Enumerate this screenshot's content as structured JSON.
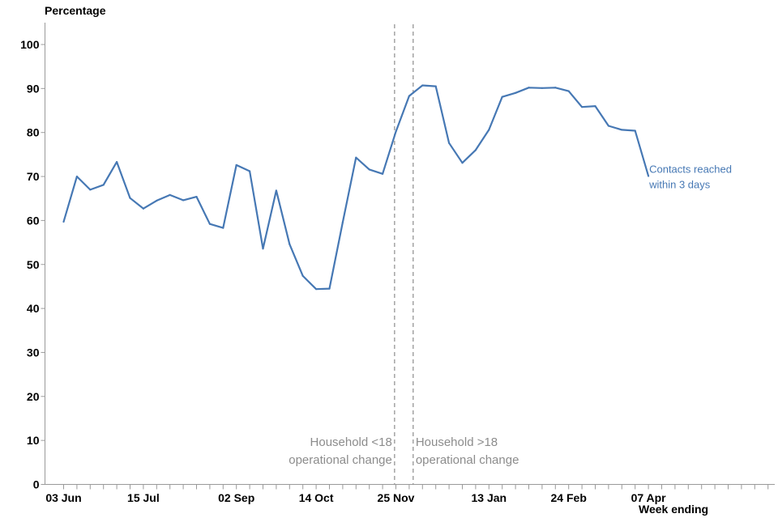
{
  "chart_data": {
    "type": "line",
    "ylabel": "Percentage",
    "xlabel": "Week ending",
    "ylim": [
      0,
      100
    ],
    "yticks": [
      0,
      10,
      20,
      30,
      40,
      50,
      60,
      70,
      80,
      90,
      100
    ],
    "xtick_labels": [
      "03 Jun",
      "15 Jul",
      "02 Sep",
      "14 Oct",
      "25 Nov",
      "13 Jan",
      "24 Feb",
      "07 Apr"
    ],
    "xtick_label_weeks": [
      0,
      6,
      13,
      19,
      25,
      32,
      38,
      44
    ],
    "total_weeks": 53,
    "grid": false,
    "series": [
      {
        "name": "Contacts reached within 3 days",
        "color": "#4678b4",
        "values": [
          59.7,
          70.0,
          67.0,
          68.1,
          73.3,
          65.1,
          62.7,
          64.5,
          65.8,
          64.6,
          65.4,
          59.2,
          58.3,
          72.6,
          71.2,
          53.6,
          66.8,
          54.6,
          47.4,
          44.4,
          44.5,
          59.6,
          74.3,
          71.6,
          70.6,
          80.2,
          88.3,
          90.7,
          90.5,
          77.6,
          73.1,
          76.0,
          80.6,
          88.1,
          89.0,
          90.2,
          90.1,
          90.2,
          89.4,
          85.8,
          86.0,
          81.5,
          80.6,
          80.4,
          70.1
        ]
      }
    ],
    "series_label_lines": [
      "Contacts reached",
      "within 3 days"
    ],
    "annotations": [
      {
        "week": 24.9,
        "lines": [
          "Household <18",
          "operational change"
        ],
        "align": "right"
      },
      {
        "week": 26.3,
        "lines": [
          "Household >18",
          "operational change"
        ],
        "align": "left"
      }
    ]
  },
  "colors": {
    "series": "#4678b4",
    "annotation": "#8c8c8c",
    "axis": "#000000"
  }
}
